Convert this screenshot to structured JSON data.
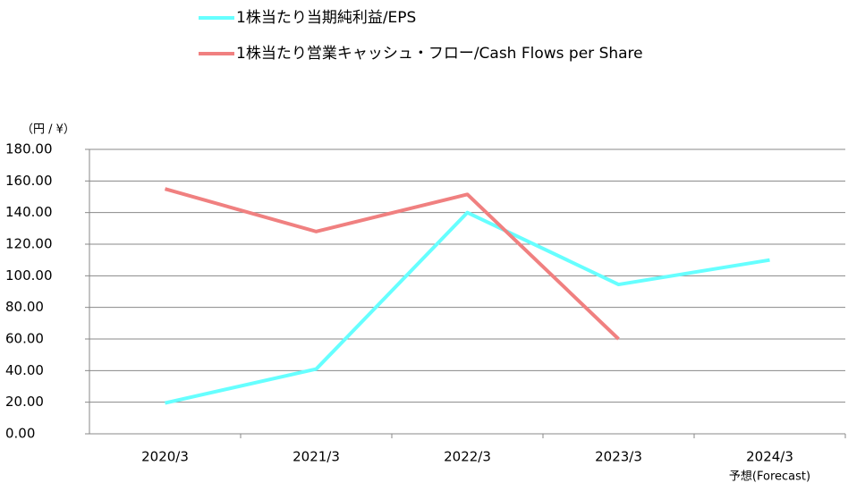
{
  "chart_data": {
    "type": "line",
    "y_label": "（円 / ¥）",
    "categories": [
      "2020/3",
      "2021/3",
      "2022/3",
      "2023/3",
      "2024/3"
    ],
    "annotation": "予想(Forecast)",
    "series": [
      {
        "name": "1株当たり当期純利益/EPS",
        "color": "#66ffff",
        "values": [
          19.5,
          41,
          140,
          94.5,
          110
        ]
      },
      {
        "name": "1株当たり営業キャッシュ・フロー/Cash Flows per Share",
        "color": "#f08080",
        "values": [
          155,
          128,
          151.5,
          60,
          null
        ]
      }
    ],
    "ylim": [
      0,
      180
    ],
    "yticks": [
      {
        "value": 0,
        "label": "0.00"
      },
      {
        "value": 20,
        "label": "20.00"
      },
      {
        "value": 40,
        "label": "40.00"
      },
      {
        "value": 60,
        "label": "60.00"
      },
      {
        "value": 80,
        "label": "80.00"
      },
      {
        "value": 100,
        "label": "100.00"
      },
      {
        "value": 120,
        "label": "120.00"
      },
      {
        "value": 140,
        "label": "140.00"
      },
      {
        "value": 160,
        "label": "160.00"
      },
      {
        "value": 180,
        "label": "180.00"
      }
    ],
    "grid": true
  }
}
